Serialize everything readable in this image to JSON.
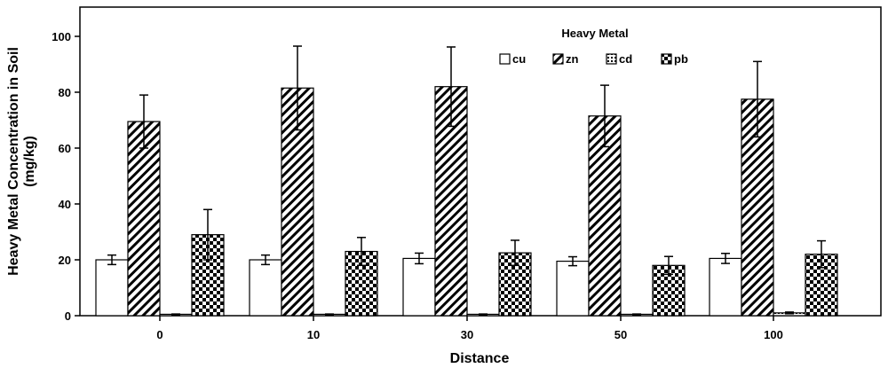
{
  "chart_data": {
    "type": "bar",
    "title": "",
    "xlabel": "Distance",
    "ylabel": "Heavy Metal Concentration in Soil (mg/kg)",
    "ylabel_lines": [
      "Heavy Metal Concentration in Soil",
      "(mg/kg)"
    ],
    "ylim": [
      0,
      110
    ],
    "yticks": [
      0,
      20,
      40,
      60,
      80,
      100
    ],
    "categories": [
      "0",
      "10",
      "30",
      "50",
      "100"
    ],
    "legend": {
      "title": "Heavy Metal",
      "position": "top-right"
    },
    "series": [
      {
        "name": "cu",
        "pattern": "plain",
        "values": [
          20,
          20,
          20.5,
          19.5,
          20.5
        ],
        "errors": [
          1.7,
          1.7,
          1.9,
          1.6,
          1.8
        ]
      },
      {
        "name": "zn",
        "pattern": "diagonal",
        "values": [
          69.5,
          81.5,
          82,
          71.5,
          77.5
        ],
        "errors": [
          9.5,
          15,
          14.2,
          11,
          13.5
        ]
      },
      {
        "name": "cd",
        "pattern": "dotted",
        "values": [
          0.5,
          0.5,
          0.5,
          0.5,
          1.0
        ],
        "errors": [
          0.1,
          0.1,
          0.1,
          0.1,
          0.3
        ]
      },
      {
        "name": "pb",
        "pattern": "checker",
        "values": [
          29,
          23,
          22.5,
          18,
          22
        ],
        "errors": [
          9,
          5,
          4.5,
          3.2,
          4.8
        ]
      }
    ]
  }
}
